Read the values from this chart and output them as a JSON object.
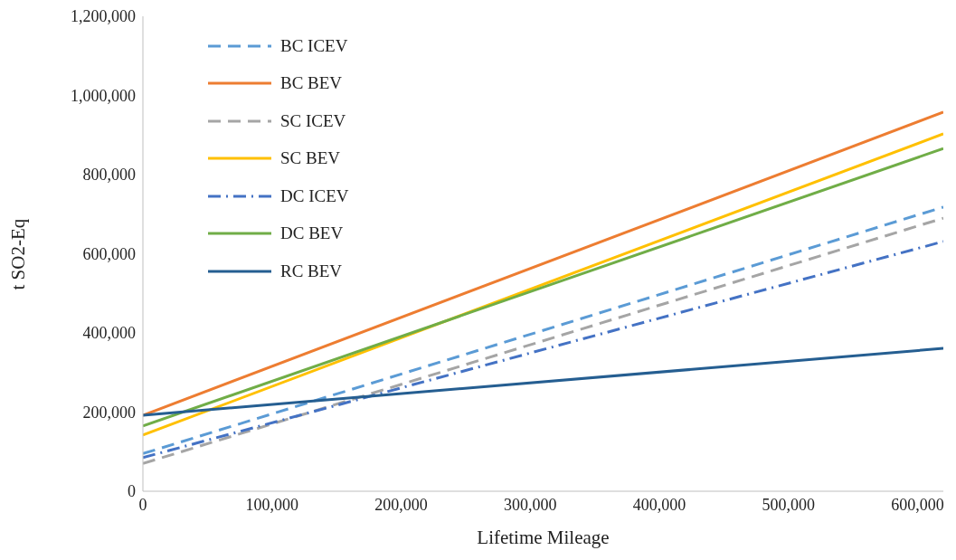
{
  "chart_data": {
    "type": "line",
    "xlabel": "Lifetime Mileage",
    "ylabel": "t SO2-Eq",
    "x": [
      0,
      620000
    ],
    "xlim": [
      0,
      620000
    ],
    "xticks": [
      0,
      {
        "value": 100000,
        "label": "100,000"
      },
      {
        "value": 200000,
        "label": "200,000"
      },
      {
        "value": 300000,
        "label": "300,000"
      },
      {
        "value": 400000,
        "label": "400,000"
      },
      {
        "value": 500000,
        "label": "500,000"
      },
      {
        "value": 600000,
        "label": "600,000"
      }
    ],
    "ylim": [
      0,
      1200000
    ],
    "yticks": [
      0,
      {
        "value": 200000,
        "label": "200,000"
      },
      {
        "value": 400000,
        "label": "400,000"
      },
      {
        "value": 600000,
        "label": "600,000"
      },
      {
        "value": 800000,
        "label": "800,000"
      },
      {
        "value": 1000000,
        "label": "1,000,000"
      },
      {
        "value": 1200000,
        "label": "1,200,000"
      }
    ],
    "grid": false,
    "legend": "top left",
    "marker": "none",
    "series": [
      {
        "name": "BC ICEV",
        "color": "#5b9bd5",
        "line_style": "dashed",
        "values": [
          95000,
          718000
        ]
      },
      {
        "name": "BC BEV",
        "color": "#ed7d31",
        "line_style": "solid",
        "values": [
          192000,
          958000
        ]
      },
      {
        "name": "SC ICEV",
        "color": "#a5a5a5",
        "line_style": "dashed",
        "values": [
          70000,
          690000
        ]
      },
      {
        "name": "SC BEV",
        "color": "#ffc000",
        "line_style": "solid",
        "values": [
          142000,
          903000
        ]
      },
      {
        "name": "DC ICEV",
        "color": "#4472c4",
        "line_style": "dashdot",
        "values": [
          85000,
          631000
        ]
      },
      {
        "name": "DC BEV",
        "color": "#70ad47",
        "line_style": "solid",
        "values": [
          165000,
          866000
        ]
      },
      {
        "name": "RC BEV",
        "color": "#255e91",
        "line_style": "solid",
        "values": [
          192000,
          361000
        ]
      }
    ]
  }
}
